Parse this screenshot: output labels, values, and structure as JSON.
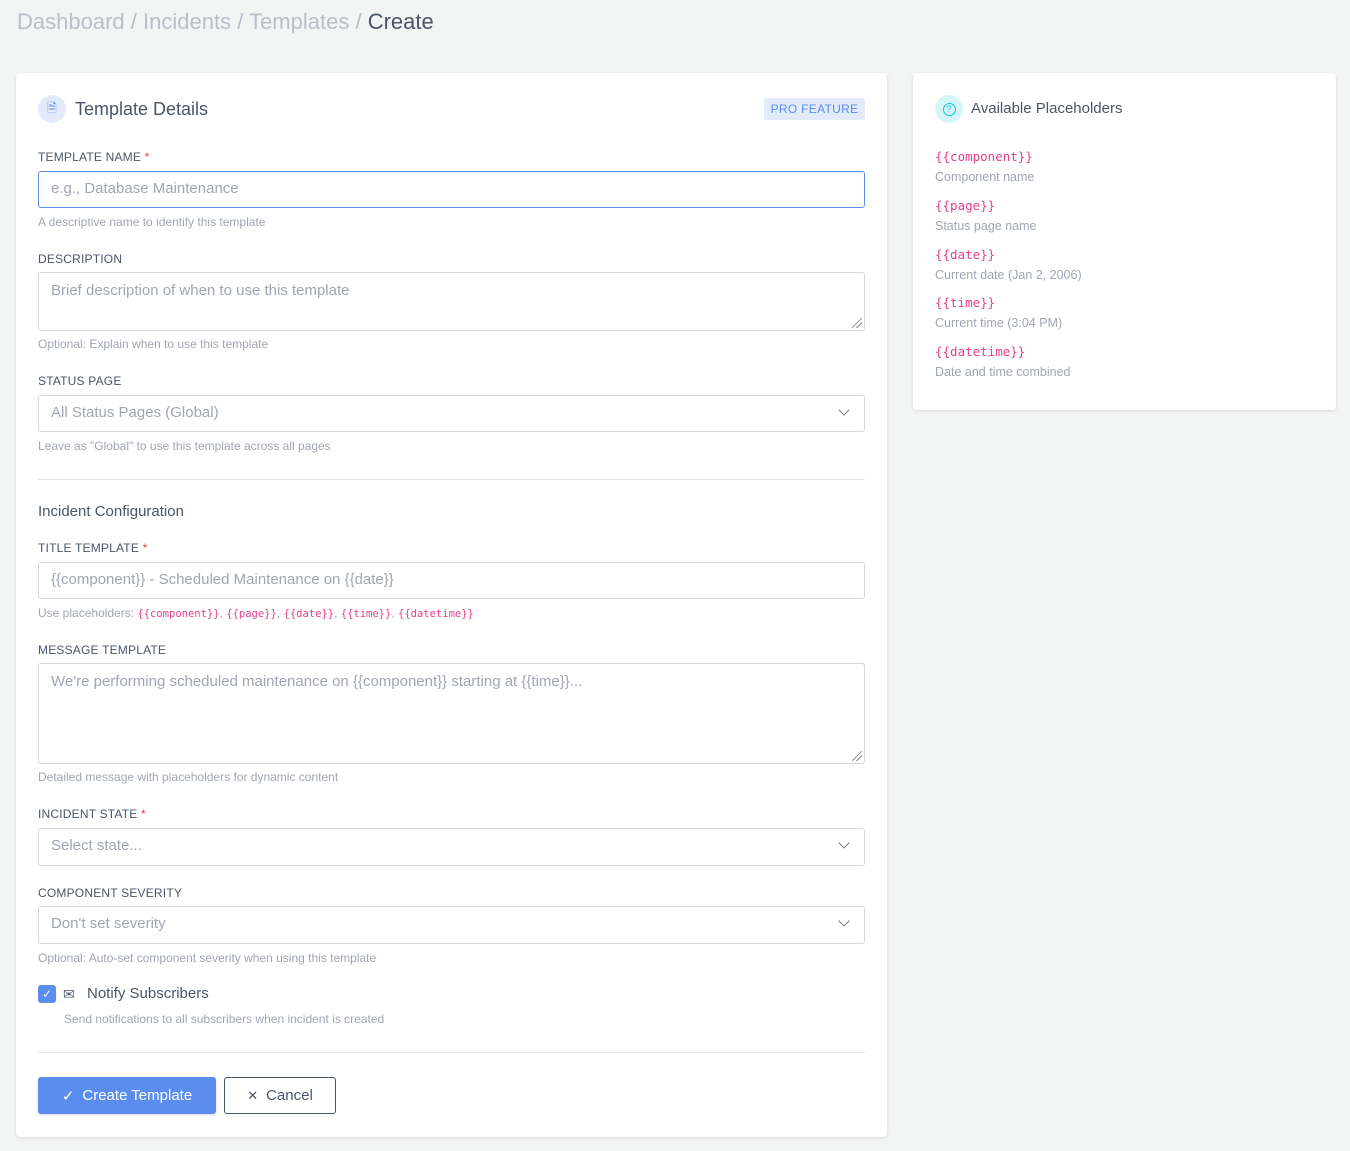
{
  "breadcrumb": {
    "items": [
      "Dashboard",
      "Incidents",
      "Templates"
    ],
    "current": "Create",
    "sep": "/"
  },
  "details": {
    "title": "Template Details",
    "badge": "PRO FEATURE",
    "template_name": {
      "label": "TEMPLATE NAME",
      "placeholder": "e.g., Database Maintenance",
      "help": "A descriptive name to identify this template"
    },
    "description": {
      "label": "DESCRIPTION",
      "placeholder": "Brief description of when to use this template",
      "help": "Optional: Explain when to use this template"
    },
    "status_page": {
      "label": "STATUS PAGE",
      "value": "All Status Pages (Global)",
      "help": "Leave as \"Global\" to use this template across all pages"
    },
    "section": "Incident Configuration",
    "title_template": {
      "label": "TITLE TEMPLATE",
      "placeholder": "{{component}} - Scheduled Maintenance on {{date}}",
      "help_prefix": "Use placeholders: ",
      "placeholders": [
        "{{component}}",
        "{{page}}",
        "{{date}}",
        "{{time}}",
        "{{datetime}}"
      ]
    },
    "message_template": {
      "label": "MESSAGE TEMPLATE",
      "placeholder": "We're performing scheduled maintenance on {{component}} starting at {{time}}...",
      "help": "Detailed message with placeholders for dynamic content"
    },
    "incident_state": {
      "label": "INCIDENT STATE",
      "value": "Select state..."
    },
    "component_severity": {
      "label": "COMPONENT SEVERITY",
      "value": "Don't set severity",
      "help": "Optional: Auto-set component severity when using this template"
    },
    "notify": {
      "label": "Notify Subscribers",
      "checked": true,
      "help": "Send notifications to all subscribers when incident is created"
    },
    "create_label": "Create Template",
    "cancel_label": "Cancel"
  },
  "placeholders": {
    "title": "Available Placeholders",
    "items": [
      {
        "code": "{{component}}",
        "desc": "Component name"
      },
      {
        "code": "{{page}}",
        "desc": "Status page name"
      },
      {
        "code": "{{date}}",
        "desc": "Current date (Jan 2, 2006)"
      },
      {
        "code": "{{time}}",
        "desc": "Current time (3:04 PM)"
      },
      {
        "code": "{{datetime}}",
        "desc": "Date and time combined"
      }
    ]
  },
  "colors": {
    "accent": "#5a8dee",
    "code": "#e83e8c",
    "required": "#e53e3e"
  }
}
